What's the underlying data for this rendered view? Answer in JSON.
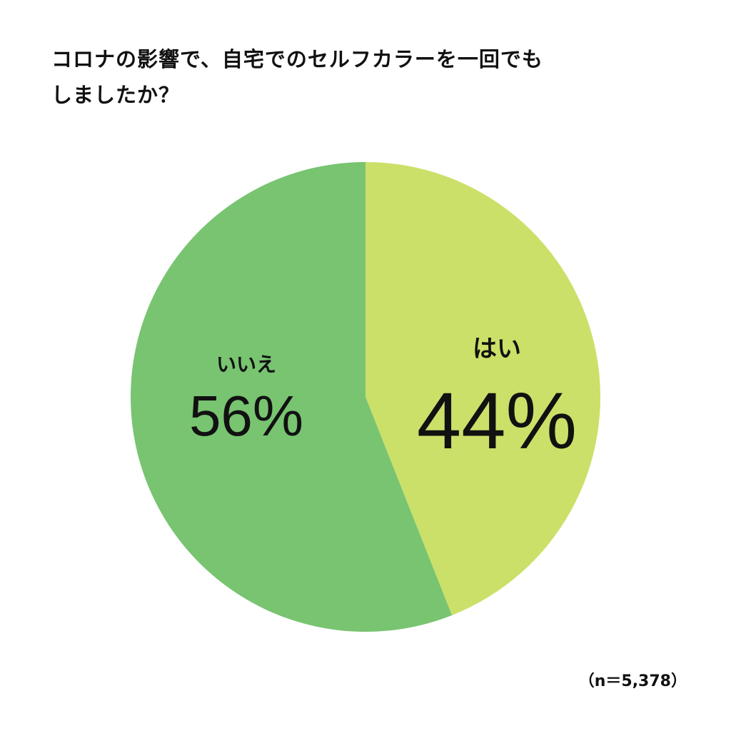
{
  "chart_data": {
    "type": "pie",
    "title_lines": [
      "コロナの影響で、自宅でのセルフカラーを一回でも",
      "しましたか？"
    ],
    "slices": [
      {
        "label": "はい",
        "value": 44,
        "value_text": "44%",
        "color": "#cbe068"
      },
      {
        "label": "いいえ",
        "value": 56,
        "value_text": "56%",
        "color": "#78c471"
      }
    ],
    "note": "（n＝5,378）"
  }
}
